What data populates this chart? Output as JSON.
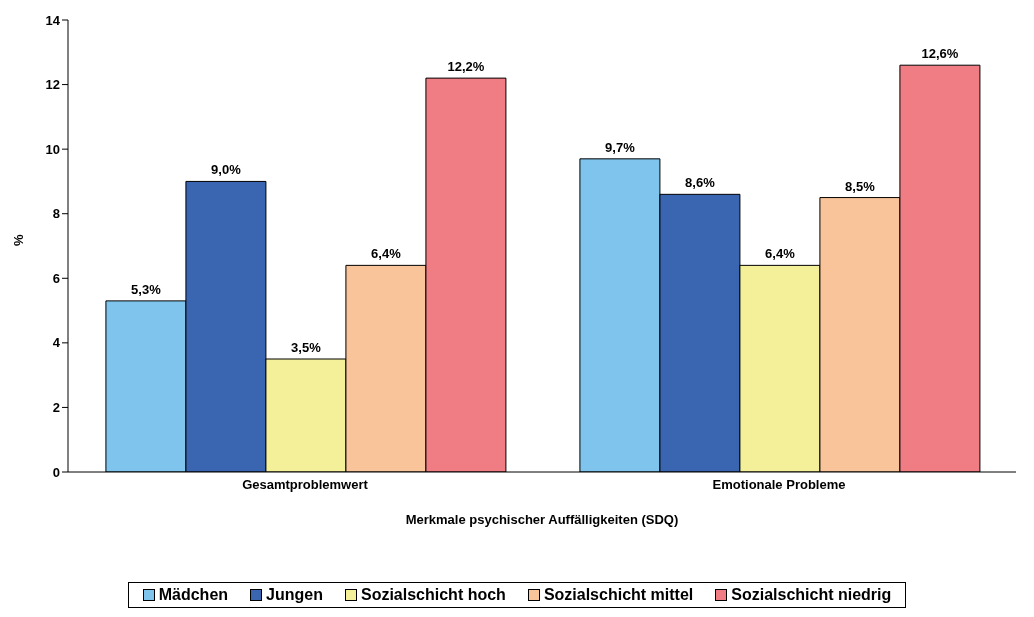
{
  "chart_data": {
    "type": "bar",
    "xlabel": "Merkmale psychischer Auffälligkeiten (SDQ)",
    "ylabel": "%",
    "categories": [
      "Gesamtproblemwert",
      "Emotionale Probleme"
    ],
    "series": [
      {
        "name": "Mädchen",
        "color": "#7fc4ec",
        "values": [
          5.3,
          9.7
        ],
        "value_labels": [
          "5,3%",
          "9,7%"
        ]
      },
      {
        "name": "Jungen",
        "color": "#3a65b0",
        "values": [
          9.0,
          8.6
        ],
        "value_labels": [
          "9,0%",
          "8,6%"
        ]
      },
      {
        "name": "Sozialschicht hoch",
        "color": "#f4f09a",
        "values": [
          3.5,
          6.4
        ],
        "value_labels": [
          "3,5%",
          "6,4%"
        ]
      },
      {
        "name": "Sozialschicht mittel",
        "color": "#f9c49a",
        "values": [
          6.4,
          8.5
        ],
        "value_labels": [
          "6,4%",
          "8,5%"
        ]
      },
      {
        "name": "Sozialschicht niedrig",
        "color": "#f07c84",
        "values": [
          12.2,
          12.6
        ],
        "value_labels": [
          "12,2%",
          "12,6%"
        ]
      }
    ],
    "ylim": [
      0,
      14
    ],
    "yticks": [
      0,
      2,
      4,
      6,
      8,
      10,
      12,
      14
    ],
    "grid": false,
    "legend": "bottom"
  }
}
